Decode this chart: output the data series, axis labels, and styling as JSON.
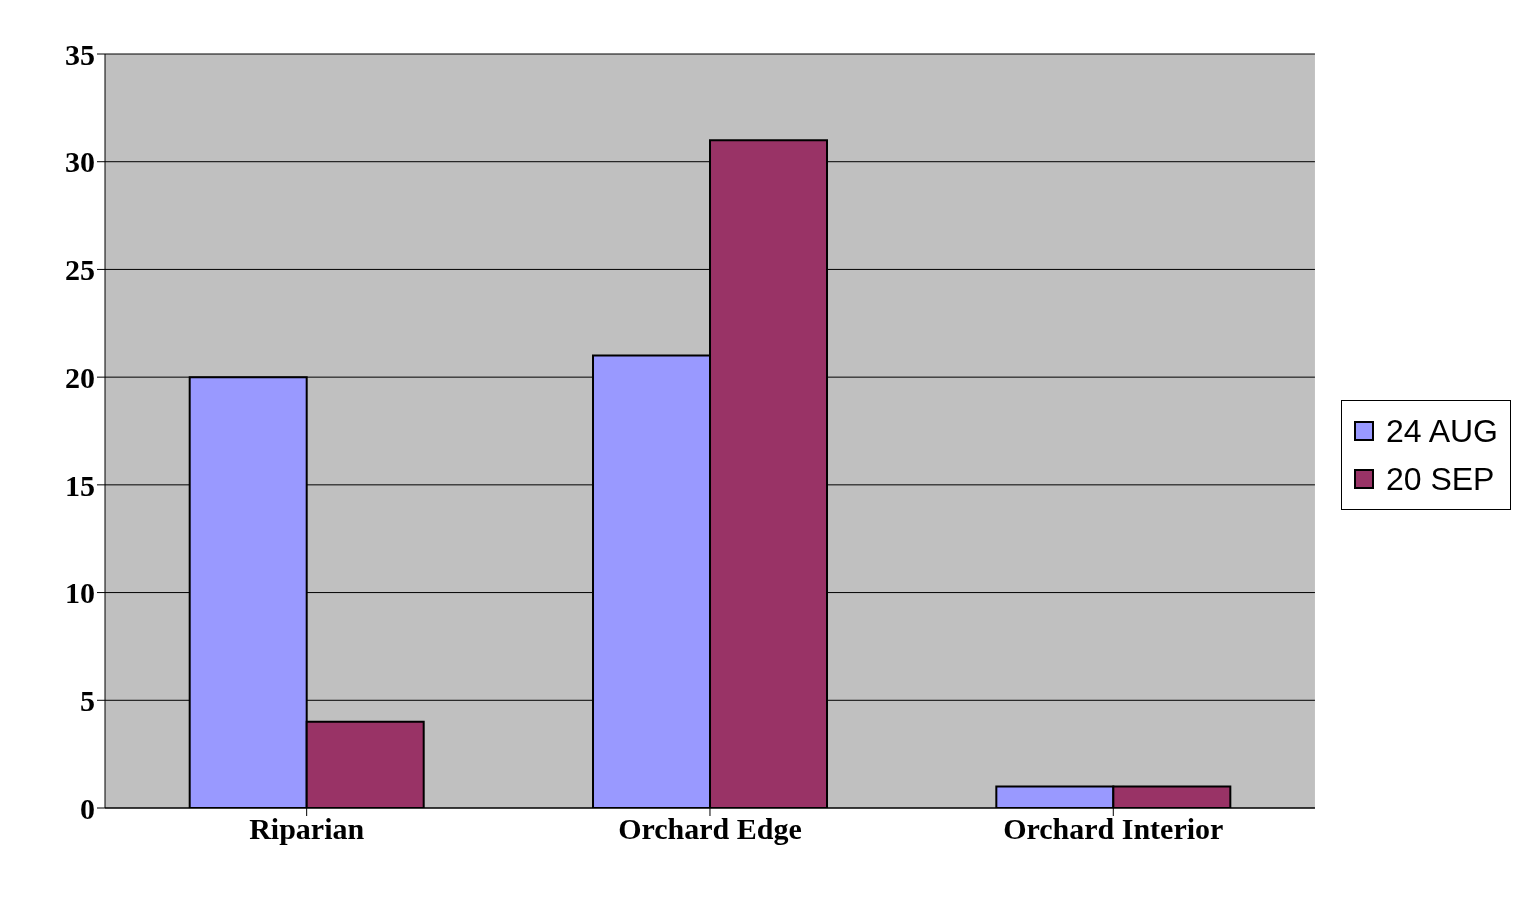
{
  "chart_data": {
    "type": "bar",
    "categories": [
      "Riparian",
      "Orchard Edge",
      "Orchard Interior"
    ],
    "series": [
      {
        "name": "24 AUG",
        "color": "#9999ff",
        "values": [
          20,
          21,
          1
        ]
      },
      {
        "name": "20 SEP",
        "color": "#993366",
        "values": [
          4,
          31,
          1
        ]
      }
    ],
    "ylim": [
      0,
      35
    ],
    "yticks": [
      0,
      5,
      10,
      15,
      20,
      25,
      30,
      35
    ],
    "grid": "y",
    "legend": "right"
  }
}
